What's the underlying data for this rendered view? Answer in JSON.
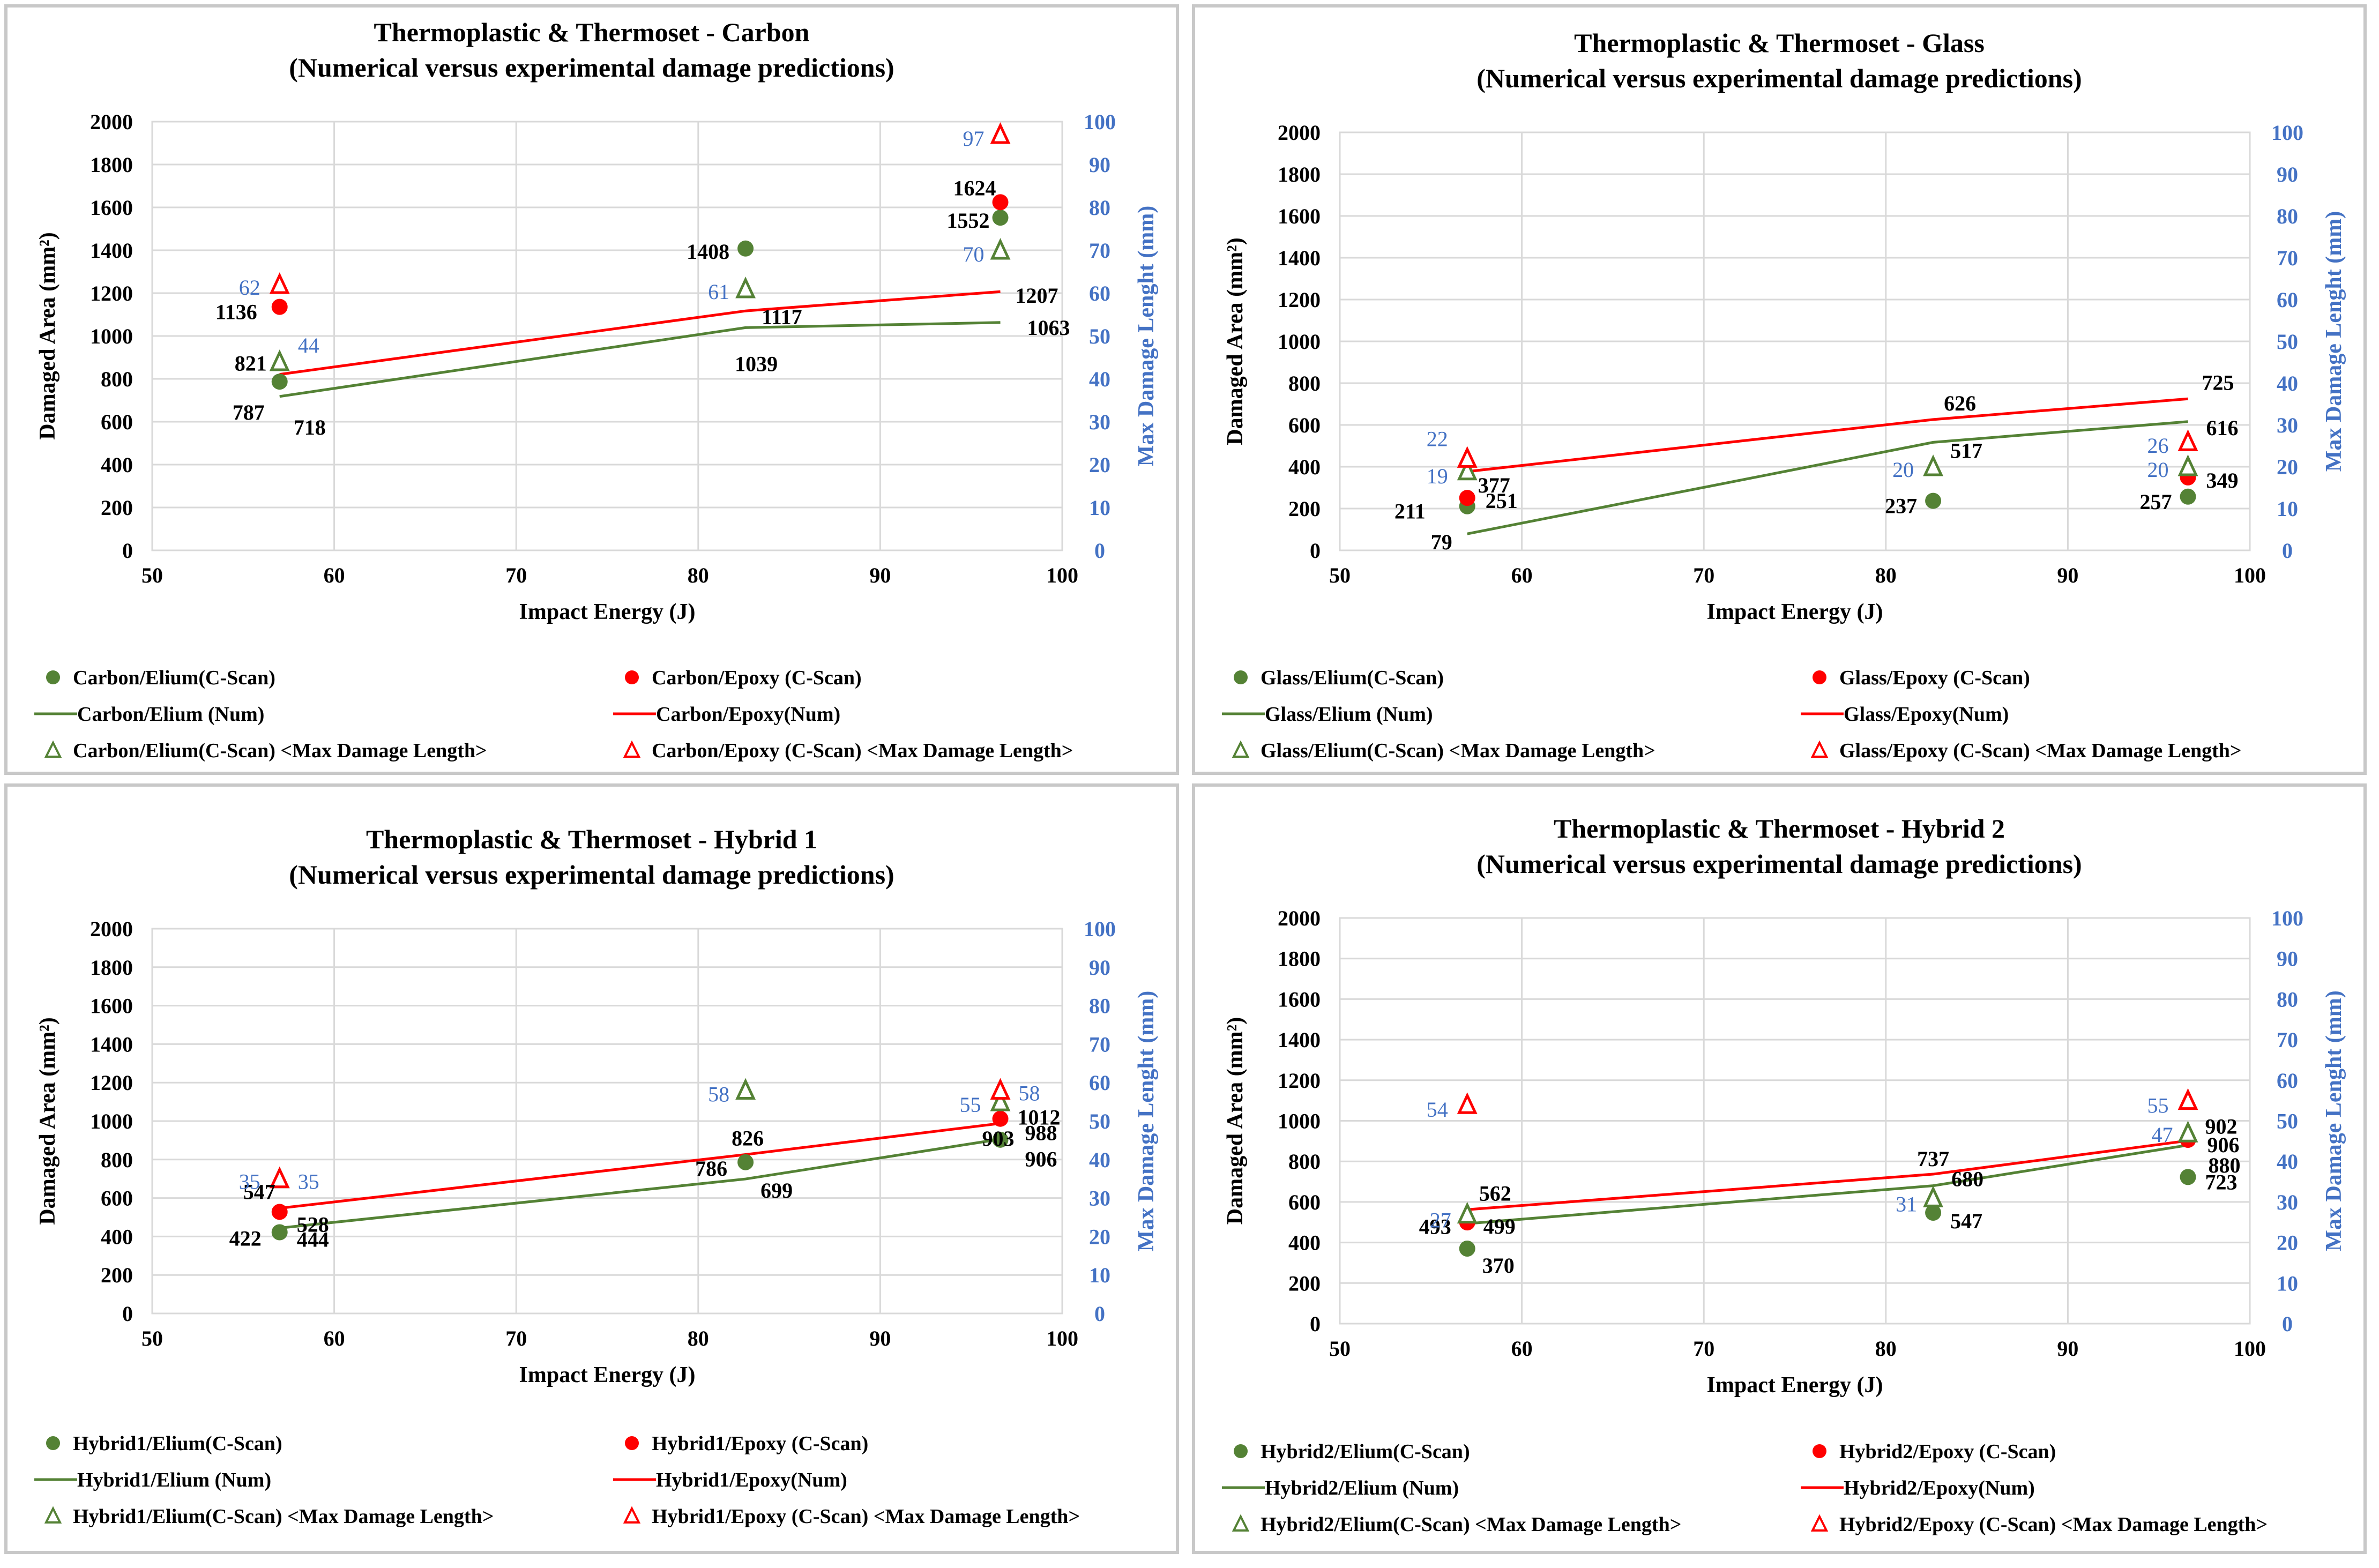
{
  "chart_data": [
    {
      "type": "line+scatter",
      "title": "Thermoplastic & Thermoset - Carbon",
      "subtitle": "(Numerical versus experimental damage predictions)",
      "xlabel": "Impact Energy (J)",
      "ylabel": "Damaged Area (mm²)",
      "y2label": "Max Damage Lenght (mm)",
      "xlim": [
        50,
        100
      ],
      "xticks": [
        50,
        60,
        70,
        80,
        90,
        100
      ],
      "ylim": [
        0,
        2000
      ],
      "yticks": [
        0,
        200,
        400,
        600,
        800,
        1000,
        1200,
        1400,
        1600,
        1800,
        2000
      ],
      "y2lim": [
        0,
        100
      ],
      "y2ticks": [
        0,
        10,
        20,
        30,
        40,
        50,
        60,
        70,
        80,
        90,
        100
      ],
      "x": [
        57,
        82.6,
        96.6
      ],
      "series": [
        {
          "name": "Carbon/Elium(C-Scan)",
          "kind": "marker-circle",
          "color": "#548235",
          "axis": "y",
          "values": [
            787,
            1408,
            1552
          ],
          "labels": [
            "787",
            "1408",
            "1552"
          ]
        },
        {
          "name": "Carbon/Epoxy (C-Scan)",
          "kind": "marker-circle",
          "color": "#ff0000",
          "axis": "y",
          "values": [
            1136,
            null,
            1624
          ],
          "labels": [
            "1136",
            "",
            "1624"
          ]
        },
        {
          "name": "Carbon/Elium (Num)",
          "kind": "line",
          "color": "#548235",
          "axis": "y",
          "values": [
            718,
            1039,
            1063
          ],
          "labels": [
            "718",
            "1039",
            "1063"
          ]
        },
        {
          "name": "Carbon/Epoxy(Num)",
          "kind": "line",
          "color": "#ff0000",
          "axis": "y",
          "values": [
            821,
            1117,
            1207
          ],
          "labels": [
            "821",
            "1117",
            "1207"
          ]
        },
        {
          "name": "Carbon/Elium(C-Scan) <Max Damage Length>",
          "kind": "marker-triangle",
          "color": "#548235",
          "axis": "y2",
          "values": [
            44,
            61,
            70
          ],
          "labels": [
            "44",
            "61",
            "70"
          ]
        },
        {
          "name": "Carbon/Epoxy (C-Scan) <Max Damage Length>",
          "kind": "marker-triangle",
          "color": "#ff0000",
          "axis": "y2",
          "values": [
            62,
            null,
            97
          ],
          "labels": [
            "62",
            "",
            "97"
          ]
        }
      ]
    },
    {
      "type": "line+scatter",
      "title": "Thermoplastic & Thermoset - Glass",
      "subtitle": "(Numerical versus experimental damage predictions)",
      "xlabel": "Impact Energy (J)",
      "ylabel": "Damaged Area (mm²)",
      "y2label": "Max Damage Lenght (mm)",
      "xlim": [
        50,
        100
      ],
      "xticks": [
        50,
        60,
        70,
        80,
        90,
        100
      ],
      "ylim": [
        0,
        2000
      ],
      "yticks": [
        0,
        200,
        400,
        600,
        800,
        1000,
        1200,
        1400,
        1600,
        1800,
        2000
      ],
      "y2lim": [
        0,
        100
      ],
      "y2ticks": [
        0,
        10,
        20,
        30,
        40,
        50,
        60,
        70,
        80,
        90,
        100
      ],
      "x": [
        57,
        82.6,
        96.6
      ],
      "series": [
        {
          "name": "Glass/Elium(C-Scan)",
          "kind": "marker-circle",
          "color": "#548235",
          "axis": "y",
          "values": [
            211,
            237,
            257
          ],
          "labels": [
            "211",
            "237",
            "257"
          ]
        },
        {
          "name": "Glass/Epoxy (C-Scan)",
          "kind": "marker-circle",
          "color": "#ff0000",
          "axis": "y",
          "values": [
            251,
            null,
            349
          ],
          "labels": [
            "251",
            "",
            "349"
          ]
        },
        {
          "name": "Glass/Elium (Num)",
          "kind": "line",
          "color": "#548235",
          "axis": "y",
          "values": [
            79,
            517,
            616
          ],
          "labels": [
            "79",
            "517",
            "616"
          ]
        },
        {
          "name": "Glass/Epoxy(Num)",
          "kind": "line",
          "color": "#ff0000",
          "axis": "y",
          "values": [
            377,
            626,
            725
          ],
          "labels": [
            "377",
            "626",
            "725"
          ]
        },
        {
          "name": "Glass/Elium(C-Scan) <Max Damage Length>",
          "kind": "marker-triangle",
          "color": "#548235",
          "axis": "y2",
          "values": [
            19,
            20,
            20
          ],
          "labels": [
            "19",
            "20",
            "20"
          ]
        },
        {
          "name": "Glass/Epoxy (C-Scan) <Max Damage Length>",
          "kind": "marker-triangle",
          "color": "#ff0000",
          "axis": "y2",
          "values": [
            22,
            null,
            26
          ],
          "labels": [
            "22",
            "",
            "26"
          ]
        }
      ]
    },
    {
      "type": "line+scatter",
      "title": "Thermoplastic & Thermoset - Hybrid 1",
      "subtitle": "(Numerical versus experimental damage predictions)",
      "xlabel": "Impact Energy (J)",
      "ylabel": "Damaged Area (mm²)",
      "y2label": "Max Damage Lenght (mm)",
      "xlim": [
        50,
        100
      ],
      "xticks": [
        50,
        60,
        70,
        80,
        90,
        100
      ],
      "ylim": [
        0,
        2000
      ],
      "yticks": [
        0,
        200,
        400,
        600,
        800,
        1000,
        1200,
        1400,
        1600,
        1800,
        2000
      ],
      "y2lim": [
        0,
        100
      ],
      "y2ticks": [
        0,
        10,
        20,
        30,
        40,
        50,
        60,
        70,
        80,
        90,
        100
      ],
      "x": [
        57,
        82.6,
        96.6
      ],
      "series": [
        {
          "name": "Hybrid1/Elium(C-Scan)",
          "kind": "marker-circle",
          "color": "#548235",
          "axis": "y",
          "values": [
            422,
            786,
            903
          ],
          "labels": [
            "422",
            "786",
            "903"
          ]
        },
        {
          "name": "Hybrid1/Epoxy (C-Scan)",
          "kind": "marker-circle",
          "color": "#ff0000",
          "axis": "y",
          "values": [
            528,
            null,
            1012
          ],
          "labels": [
            "528",
            "",
            "1012"
          ]
        },
        {
          "name": "Hybrid1/Elium (Num)",
          "kind": "line",
          "color": "#548235",
          "axis": "y",
          "values": [
            444,
            699,
            906
          ],
          "labels": [
            "444",
            "699",
            "906"
          ]
        },
        {
          "name": "Hybrid1/Epoxy(Num)",
          "kind": "line",
          "color": "#ff0000",
          "axis": "y",
          "values": [
            547,
            826,
            988
          ],
          "labels": [
            "547",
            "826",
            "988"
          ]
        },
        {
          "name": "Hybrid1/Elium(C-Scan) <Max Damage Length>",
          "kind": "marker-triangle",
          "color": "#548235",
          "axis": "y2",
          "values": [
            35,
            58,
            55
          ],
          "labels": [
            "35",
            "58",
            "55"
          ]
        },
        {
          "name": "Hybrid1/Epoxy (C-Scan) <Max Damage Length>",
          "kind": "marker-triangle",
          "color": "#ff0000",
          "axis": "y2",
          "values": [
            35,
            null,
            58
          ],
          "labels": [
            "35",
            "",
            "58"
          ]
        }
      ]
    },
    {
      "type": "line+scatter",
      "title": "Thermoplastic & Thermoset - Hybrid 2",
      "subtitle": "(Numerical versus experimental damage predictions)",
      "xlabel": "Impact Energy (J)",
      "ylabel": "Damaged Area (mm²)",
      "y2label": "Max Damage Lenght (mm)",
      "xlim": [
        50,
        100
      ],
      "xticks": [
        50,
        60,
        70,
        80,
        90,
        100
      ],
      "ylim": [
        0,
        2000
      ],
      "yticks": [
        0,
        200,
        400,
        600,
        800,
        1000,
        1200,
        1400,
        1600,
        1800,
        2000
      ],
      "y2lim": [
        0,
        100
      ],
      "y2ticks": [
        0,
        10,
        20,
        30,
        40,
        50,
        60,
        70,
        80,
        90,
        100
      ],
      "x": [
        57,
        82.6,
        96.6
      ],
      "series": [
        {
          "name": "Hybrid2/Elium(C-Scan)",
          "kind": "marker-circle",
          "color": "#548235",
          "axis": "y",
          "values": [
            370,
            547,
            723
          ],
          "labels": [
            "370",
            "547",
            "723"
          ]
        },
        {
          "name": "Hybrid2/Epoxy (C-Scan)",
          "kind": "marker-circle",
          "color": "#ff0000",
          "axis": "y",
          "values": [
            499,
            null,
            906
          ],
          "labels": [
            "499",
            "",
            "906"
          ]
        },
        {
          "name": "Hybrid2/Elium (Num)",
          "kind": "line",
          "color": "#548235",
          "axis": "y",
          "values": [
            493,
            680,
            880
          ],
          "labels": [
            "493",
            "680",
            "880"
          ]
        },
        {
          "name": "Hybrid2/Epoxy(Num)",
          "kind": "line",
          "color": "#ff0000",
          "axis": "y",
          "values": [
            562,
            737,
            902
          ],
          "labels": [
            "562",
            "737",
            "902"
          ]
        },
        {
          "name": "Hybrid2/Elium(C-Scan) <Max Damage Length>",
          "kind": "marker-triangle",
          "color": "#548235",
          "axis": "y2",
          "values": [
            27,
            31,
            47
          ],
          "labels": [
            "27",
            "31",
            "47"
          ]
        },
        {
          "name": "Hybrid2/Epoxy (C-Scan) <Max Damage Length>",
          "kind": "marker-triangle",
          "color": "#ff0000",
          "axis": "y2",
          "values": [
            54,
            null,
            55
          ],
          "labels": [
            "54",
            "",
            "55"
          ]
        }
      ]
    }
  ],
  "colors": {
    "elium": "#548235",
    "epoxy": "#ff0000",
    "y2_axis_text": "#4472c4",
    "grid": "#d9d9d9"
  }
}
